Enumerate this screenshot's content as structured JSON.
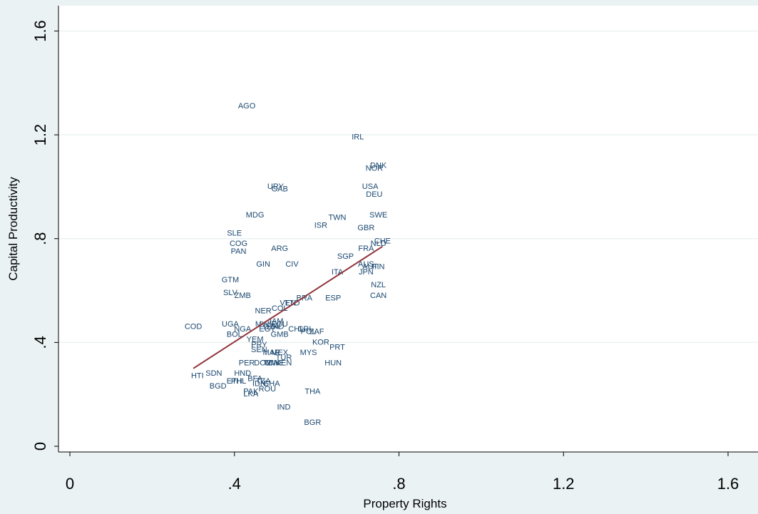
{
  "chart_data": {
    "type": "scatter",
    "title": "",
    "xlabel": "Property Rights",
    "ylabel": "Capital Productivity",
    "xlim": [
      0,
      1.6
    ],
    "ylim": [
      0,
      1.6
    ],
    "x_ticks": [
      0,
      0.4,
      0.8,
      1.2,
      1.6
    ],
    "x_tick_labels": [
      "0",
      ".4",
      ".8",
      "1.2",
      "1.6"
    ],
    "y_ticks": [
      0,
      0.4,
      0.8,
      1.2,
      1.6
    ],
    "y_tick_labels": [
      "0",
      ".4",
      ".8",
      "1.2",
      "1.6"
    ],
    "grid": "horizontal",
    "label_color": "#1a476f",
    "fit_color": "#90353b",
    "background": "#eaf2f3",
    "plot_background": "#ffffff",
    "points": [
      {
        "label": "AGO",
        "x": 0.43,
        "y": 1.31
      },
      {
        "label": "IRL",
        "x": 0.7,
        "y": 1.19
      },
      {
        "label": "DNK",
        "x": 0.75,
        "y": 1.08
      },
      {
        "label": "NOR",
        "x": 0.74,
        "y": 1.07
      },
      {
        "label": "URY",
        "x": 0.5,
        "y": 1.0
      },
      {
        "label": "GAB",
        "x": 0.51,
        "y": 0.99
      },
      {
        "label": "USA",
        "x": 0.73,
        "y": 1.0
      },
      {
        "label": "DEU",
        "x": 0.74,
        "y": 0.97
      },
      {
        "label": "MDG",
        "x": 0.45,
        "y": 0.89
      },
      {
        "label": "TWN",
        "x": 0.65,
        "y": 0.88
      },
      {
        "label": "SWE",
        "x": 0.75,
        "y": 0.89
      },
      {
        "label": "ISR",
        "x": 0.61,
        "y": 0.85
      },
      {
        "label": "GBR",
        "x": 0.72,
        "y": 0.84
      },
      {
        "label": "SLE",
        "x": 0.4,
        "y": 0.82
      },
      {
        "label": "CHE",
        "x": 0.76,
        "y": 0.79
      },
      {
        "label": "NLD",
        "x": 0.75,
        "y": 0.78
      },
      {
        "label": "COG",
        "x": 0.41,
        "y": 0.78
      },
      {
        "label": "FRA",
        "x": 0.72,
        "y": 0.76
      },
      {
        "label": "PAN",
        "x": 0.41,
        "y": 0.75
      },
      {
        "label": "ARG",
        "x": 0.51,
        "y": 0.76
      },
      {
        "label": "SGP",
        "x": 0.67,
        "y": 0.73
      },
      {
        "label": "GIN",
        "x": 0.47,
        "y": 0.7
      },
      {
        "label": "CIV",
        "x": 0.54,
        "y": 0.7
      },
      {
        "label": "AUS",
        "x": 0.72,
        "y": 0.7
      },
      {
        "label": "AUT",
        "x": 0.73,
        "y": 0.69
      },
      {
        "label": "FIN",
        "x": 0.75,
        "y": 0.69
      },
      {
        "label": "JPN",
        "x": 0.72,
        "y": 0.67
      },
      {
        "label": "ITA",
        "x": 0.65,
        "y": 0.67
      },
      {
        "label": "GTM",
        "x": 0.39,
        "y": 0.64
      },
      {
        "label": "NZL",
        "x": 0.75,
        "y": 0.62
      },
      {
        "label": "SLV",
        "x": 0.39,
        "y": 0.59
      },
      {
        "label": "ZMB",
        "x": 0.42,
        "y": 0.58
      },
      {
        "label": "CAN",
        "x": 0.75,
        "y": 0.58
      },
      {
        "label": "BRA",
        "x": 0.57,
        "y": 0.57
      },
      {
        "label": "ESP",
        "x": 0.64,
        "y": 0.57
      },
      {
        "label": "VEN",
        "x": 0.53,
        "y": 0.55
      },
      {
        "label": "TTO",
        "x": 0.54,
        "y": 0.55
      },
      {
        "label": "COL",
        "x": 0.51,
        "y": 0.53
      },
      {
        "label": "NER",
        "x": 0.47,
        "y": 0.52
      },
      {
        "label": "JAM",
        "x": 0.5,
        "y": 0.48
      },
      {
        "label": "MWI",
        "x": 0.47,
        "y": 0.47
      },
      {
        "label": "ECU",
        "x": 0.51,
        "y": 0.47
      },
      {
        "label": "HND",
        "x": 0.5,
        "y": 0.46
      },
      {
        "label": "DZA",
        "x": 0.49,
        "y": 0.46
      },
      {
        "label": "CHL",
        "x": 0.55,
        "y": 0.45
      },
      {
        "label": "CRI",
        "x": 0.57,
        "y": 0.45
      },
      {
        "label": "COD",
        "x": 0.3,
        "y": 0.46
      },
      {
        "label": "UGA",
        "x": 0.39,
        "y": 0.47
      },
      {
        "label": "NGA",
        "x": 0.42,
        "y": 0.45
      },
      {
        "label": "EGY",
        "x": 0.48,
        "y": 0.45
      },
      {
        "label": "POL",
        "x": 0.58,
        "y": 0.44
      },
      {
        "label": "ZAF",
        "x": 0.6,
        "y": 0.44
      },
      {
        "label": "BOL",
        "x": 0.4,
        "y": 0.43
      },
      {
        "label": "GMB",
        "x": 0.51,
        "y": 0.43
      },
      {
        "label": "YEM",
        "x": 0.45,
        "y": 0.41
      },
      {
        "label": "KOR",
        "x": 0.61,
        "y": 0.4
      },
      {
        "label": "PRY",
        "x": 0.46,
        "y": 0.39
      },
      {
        "label": "PRT",
        "x": 0.65,
        "y": 0.38
      },
      {
        "label": "SEN",
        "x": 0.46,
        "y": 0.37
      },
      {
        "label": "MAR",
        "x": 0.49,
        "y": 0.36
      },
      {
        "label": "MEX",
        "x": 0.51,
        "y": 0.36
      },
      {
        "label": "MYS",
        "x": 0.58,
        "y": 0.36
      },
      {
        "label": "TUR",
        "x": 0.52,
        "y": 0.34
      },
      {
        "label": "PER",
        "x": 0.43,
        "y": 0.32
      },
      {
        "label": "DOM",
        "x": 0.47,
        "y": 0.32
      },
      {
        "label": "TUN",
        "x": 0.49,
        "y": 0.32
      },
      {
        "label": "ZWE",
        "x": 0.5,
        "y": 0.32
      },
      {
        "label": "KEN",
        "x": 0.52,
        "y": 0.32
      },
      {
        "label": "HUN",
        "x": 0.64,
        "y": 0.32
      },
      {
        "label": "HTI",
        "x": 0.31,
        "y": 0.27
      },
      {
        "label": "SDN",
        "x": 0.35,
        "y": 0.28
      },
      {
        "label": "HND",
        "x": 0.42,
        "y": 0.28
      },
      {
        "label": "BFA",
        "x": 0.45,
        "y": 0.26
      },
      {
        "label": "ETH",
        "x": 0.4,
        "y": 0.25
      },
      {
        "label": "PHL",
        "x": 0.41,
        "y": 0.25
      },
      {
        "label": "TZA",
        "x": 0.47,
        "y": 0.25
      },
      {
        "label": "IDN",
        "x": 0.46,
        "y": 0.24
      },
      {
        "label": "BGD",
        "x": 0.36,
        "y": 0.23
      },
      {
        "label": "GHA",
        "x": 0.49,
        "y": 0.24
      },
      {
        "label": "ROU",
        "x": 0.48,
        "y": 0.22
      },
      {
        "label": "THA",
        "x": 0.59,
        "y": 0.21
      },
      {
        "label": "PAK",
        "x": 0.44,
        "y": 0.21
      },
      {
        "label": "LKA",
        "x": 0.44,
        "y": 0.2
      },
      {
        "label": "IND",
        "x": 0.52,
        "y": 0.15
      },
      {
        "label": "BGR",
        "x": 0.59,
        "y": 0.09
      }
    ],
    "fit_line": {
      "x": [
        0.3,
        0.76
      ],
      "y": [
        0.3,
        0.77
      ]
    }
  }
}
